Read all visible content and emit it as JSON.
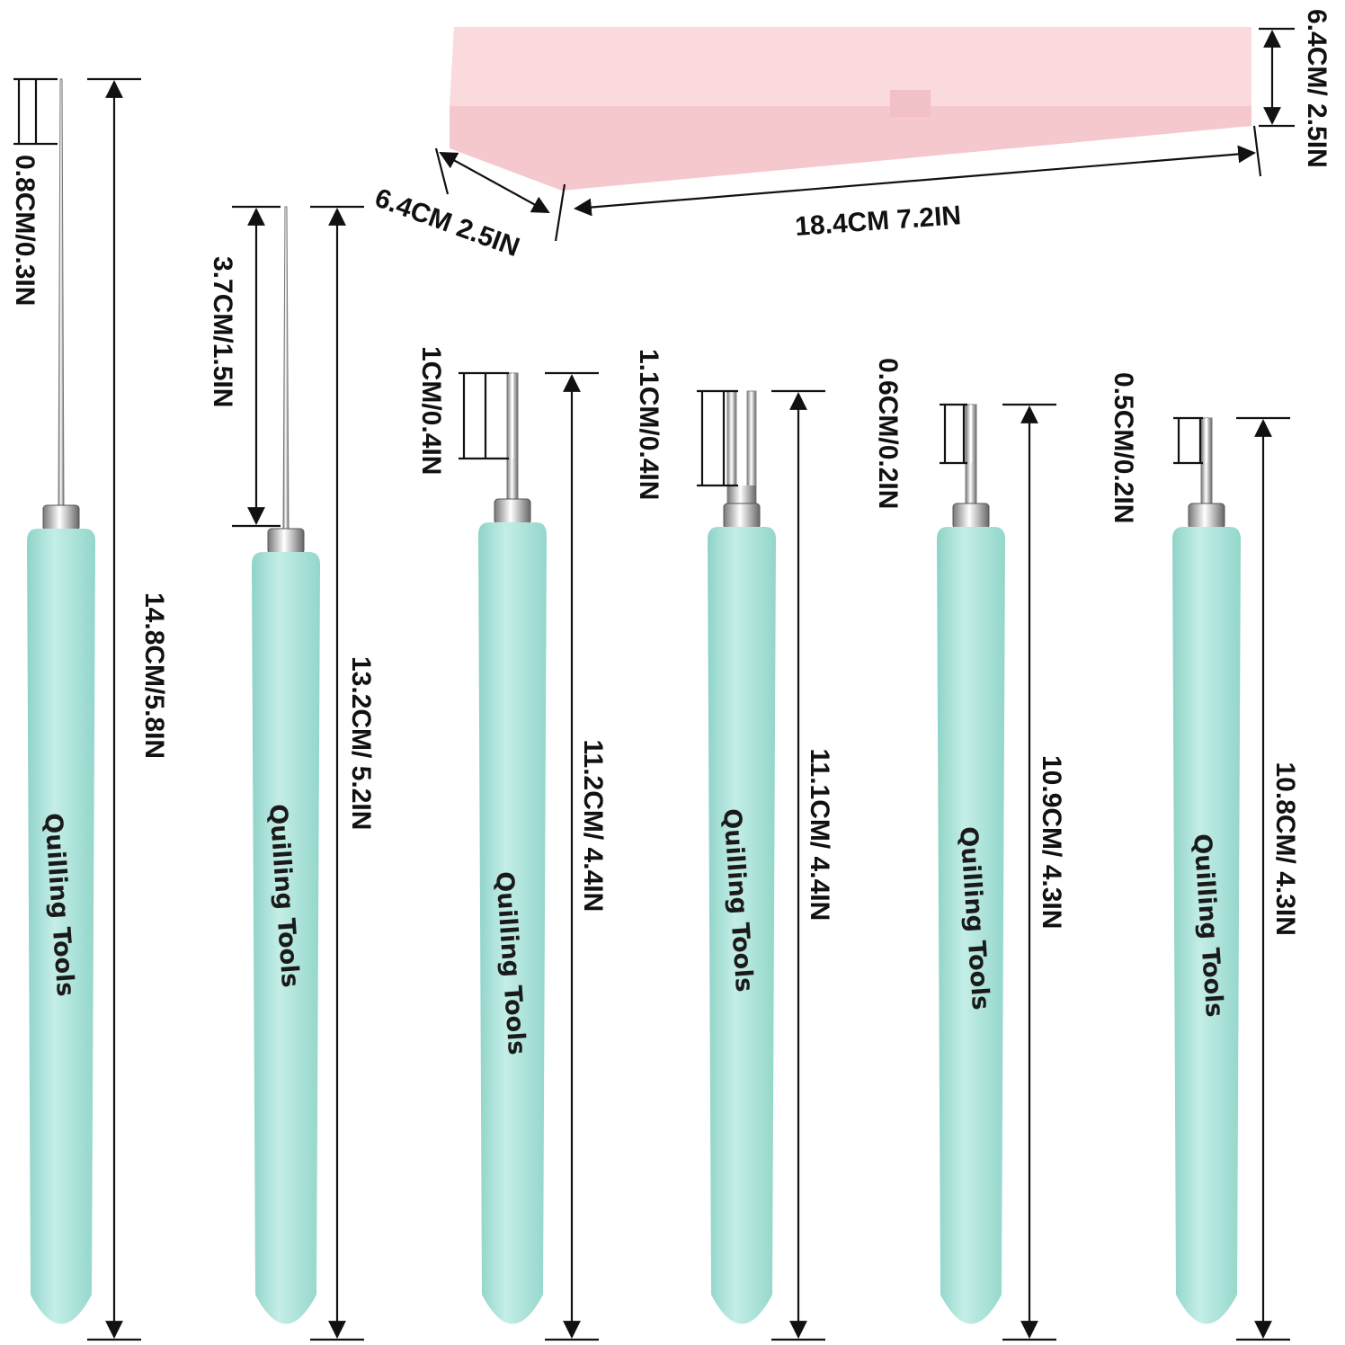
{
  "box": {
    "color": "#f7cfd4",
    "length_label": "18.4CM 7.2IN",
    "width_label": "6.4CM 2.5IN",
    "height_label": "6.4CM/ 2.5IN"
  },
  "handle_color": "#a9e2d9",
  "brand_text": "Quilling Tools",
  "tools": [
    {
      "length_label": "14.8CM/5.8IN",
      "tip_label": "0.8CM/0.3IN",
      "tip_type": "needle"
    },
    {
      "length_label": "13.2CM/ 5.2IN",
      "tip_label": "3.7CM/1.5IN",
      "tip_type": "awl"
    },
    {
      "length_label": "11.2CM/ 4.4IN",
      "tip_label": "1CM/0.4IN",
      "tip_type": "slotted"
    },
    {
      "length_label": "11.1CM/ 4.4IN",
      "tip_label": "1.1CM/0.4IN",
      "tip_type": "wide-slotted"
    },
    {
      "length_label": "10.9CM/ 4.3IN",
      "tip_label": "0.6CM/0.2IN",
      "tip_type": "slotted"
    },
    {
      "length_label": "10.8CM/ 4.3IN",
      "tip_label": "0.5CM/0.2IN",
      "tip_type": "slotted"
    }
  ]
}
